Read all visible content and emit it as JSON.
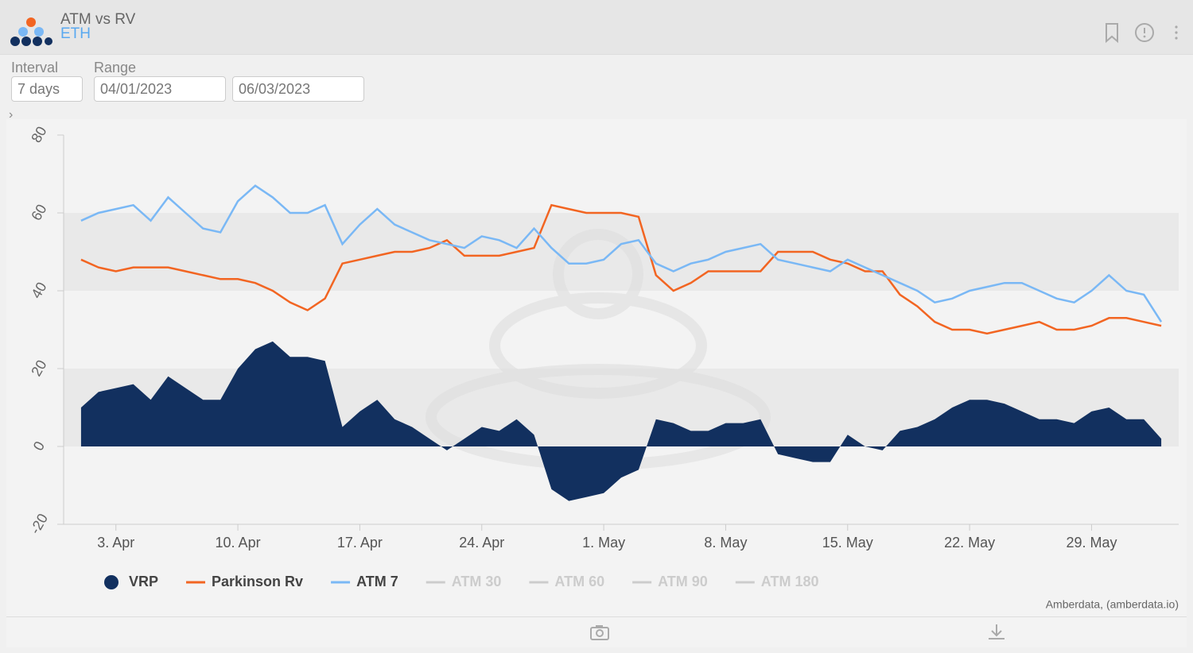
{
  "header": {
    "title": "ATM vs RV",
    "subtitle": "ETH"
  },
  "controls": {
    "interval_label": "Interval",
    "interval_value": "7 days",
    "range_label": "Range",
    "range_start": "04/01/2023",
    "range_end": "06/03/2023"
  },
  "chart_data": {
    "type": "area-line",
    "x": [
      "2023-04-01",
      "2023-04-02",
      "2023-04-03",
      "2023-04-04",
      "2023-04-05",
      "2023-04-06",
      "2023-04-07",
      "2023-04-08",
      "2023-04-09",
      "2023-04-10",
      "2023-04-11",
      "2023-04-12",
      "2023-04-13",
      "2023-04-14",
      "2023-04-15",
      "2023-04-16",
      "2023-04-17",
      "2023-04-18",
      "2023-04-19",
      "2023-04-20",
      "2023-04-21",
      "2023-04-22",
      "2023-04-23",
      "2023-04-24",
      "2023-04-25",
      "2023-04-26",
      "2023-04-27",
      "2023-04-28",
      "2023-04-29",
      "2023-04-30",
      "2023-05-01",
      "2023-05-02",
      "2023-05-03",
      "2023-05-04",
      "2023-05-05",
      "2023-05-06",
      "2023-05-07",
      "2023-05-08",
      "2023-05-09",
      "2023-05-10",
      "2023-05-11",
      "2023-05-12",
      "2023-05-13",
      "2023-05-14",
      "2023-05-15",
      "2023-05-16",
      "2023-05-17",
      "2023-05-18",
      "2023-05-19",
      "2023-05-20",
      "2023-05-21",
      "2023-05-22",
      "2023-05-23",
      "2023-05-24",
      "2023-05-25",
      "2023-05-26",
      "2023-05-27",
      "2023-05-28",
      "2023-05-29",
      "2023-05-30",
      "2023-05-31",
      "2023-06-01",
      "2023-06-02"
    ],
    "series": [
      {
        "name": "VRP",
        "color": "#12305f",
        "kind": "area",
        "values": [
          10,
          14,
          15,
          16,
          12,
          18,
          15,
          12,
          12,
          20,
          25,
          27,
          23,
          23,
          22,
          5,
          9,
          12,
          7,
          5,
          2,
          -1,
          2,
          5,
          4,
          7,
          3,
          -11,
          -14,
          -13,
          -12,
          -8,
          -6,
          7,
          6,
          4,
          4,
          6,
          6,
          7,
          -2,
          -3,
          -4,
          -4,
          3,
          0,
          -1,
          4,
          5,
          7,
          10,
          12,
          12,
          11,
          9,
          7,
          7,
          6,
          9,
          10,
          7,
          7,
          2
        ]
      },
      {
        "name": "Parkinson Rv",
        "color": "#f26522",
        "kind": "line",
        "values": [
          48,
          46,
          45,
          46,
          46,
          46,
          45,
          44,
          43,
          43,
          42,
          40,
          37,
          35,
          38,
          47,
          48,
          49,
          50,
          50,
          51,
          53,
          49,
          49,
          49,
          50,
          51,
          62,
          61,
          60,
          60,
          60,
          59,
          44,
          40,
          42,
          45,
          45,
          45,
          45,
          50,
          50,
          50,
          48,
          47,
          45,
          45,
          39,
          36,
          32,
          30,
          30,
          29,
          30,
          31,
          32,
          30,
          30,
          31,
          33,
          33,
          32,
          31
        ]
      },
      {
        "name": "ATM 7",
        "color": "#7ab8f5",
        "kind": "line",
        "values": [
          58,
          60,
          61,
          62,
          58,
          64,
          60,
          56,
          55,
          63,
          67,
          64,
          60,
          60,
          62,
          52,
          57,
          61,
          57,
          55,
          53,
          52,
          51,
          54,
          53,
          51,
          56,
          51,
          47,
          47,
          48,
          52,
          53,
          47,
          45,
          47,
          48,
          50,
          51,
          52,
          48,
          47,
          46,
          45,
          48,
          46,
          44,
          42,
          40,
          37,
          38,
          40,
          41,
          42,
          42,
          40,
          38,
          37,
          40,
          44,
          40,
          39,
          32
        ]
      }
    ],
    "legend_inactive": [
      "ATM 30",
      "ATM 60",
      "ATM 90",
      "ATM 180"
    ],
    "xlim": [
      "2023-03-31",
      "2023-06-03"
    ],
    "xticks": [
      {
        "value": "2023-04-03",
        "label": "3. Apr"
      },
      {
        "value": "2023-04-10",
        "label": "10. Apr"
      },
      {
        "value": "2023-04-17",
        "label": "17. Apr"
      },
      {
        "value": "2023-04-24",
        "label": "24. Apr"
      },
      {
        "value": "2023-05-01",
        "label": "1. May"
      },
      {
        "value": "2023-05-08",
        "label": "8. May"
      },
      {
        "value": "2023-05-15",
        "label": "15. May"
      },
      {
        "value": "2023-05-22",
        "label": "22. May"
      },
      {
        "value": "2023-05-29",
        "label": "29. May"
      }
    ],
    "ylim": [
      -20,
      80
    ],
    "yticks": [
      -20,
      0,
      20,
      40,
      60,
      80
    ],
    "credits": "Amberdata, (amberdata.io)"
  }
}
